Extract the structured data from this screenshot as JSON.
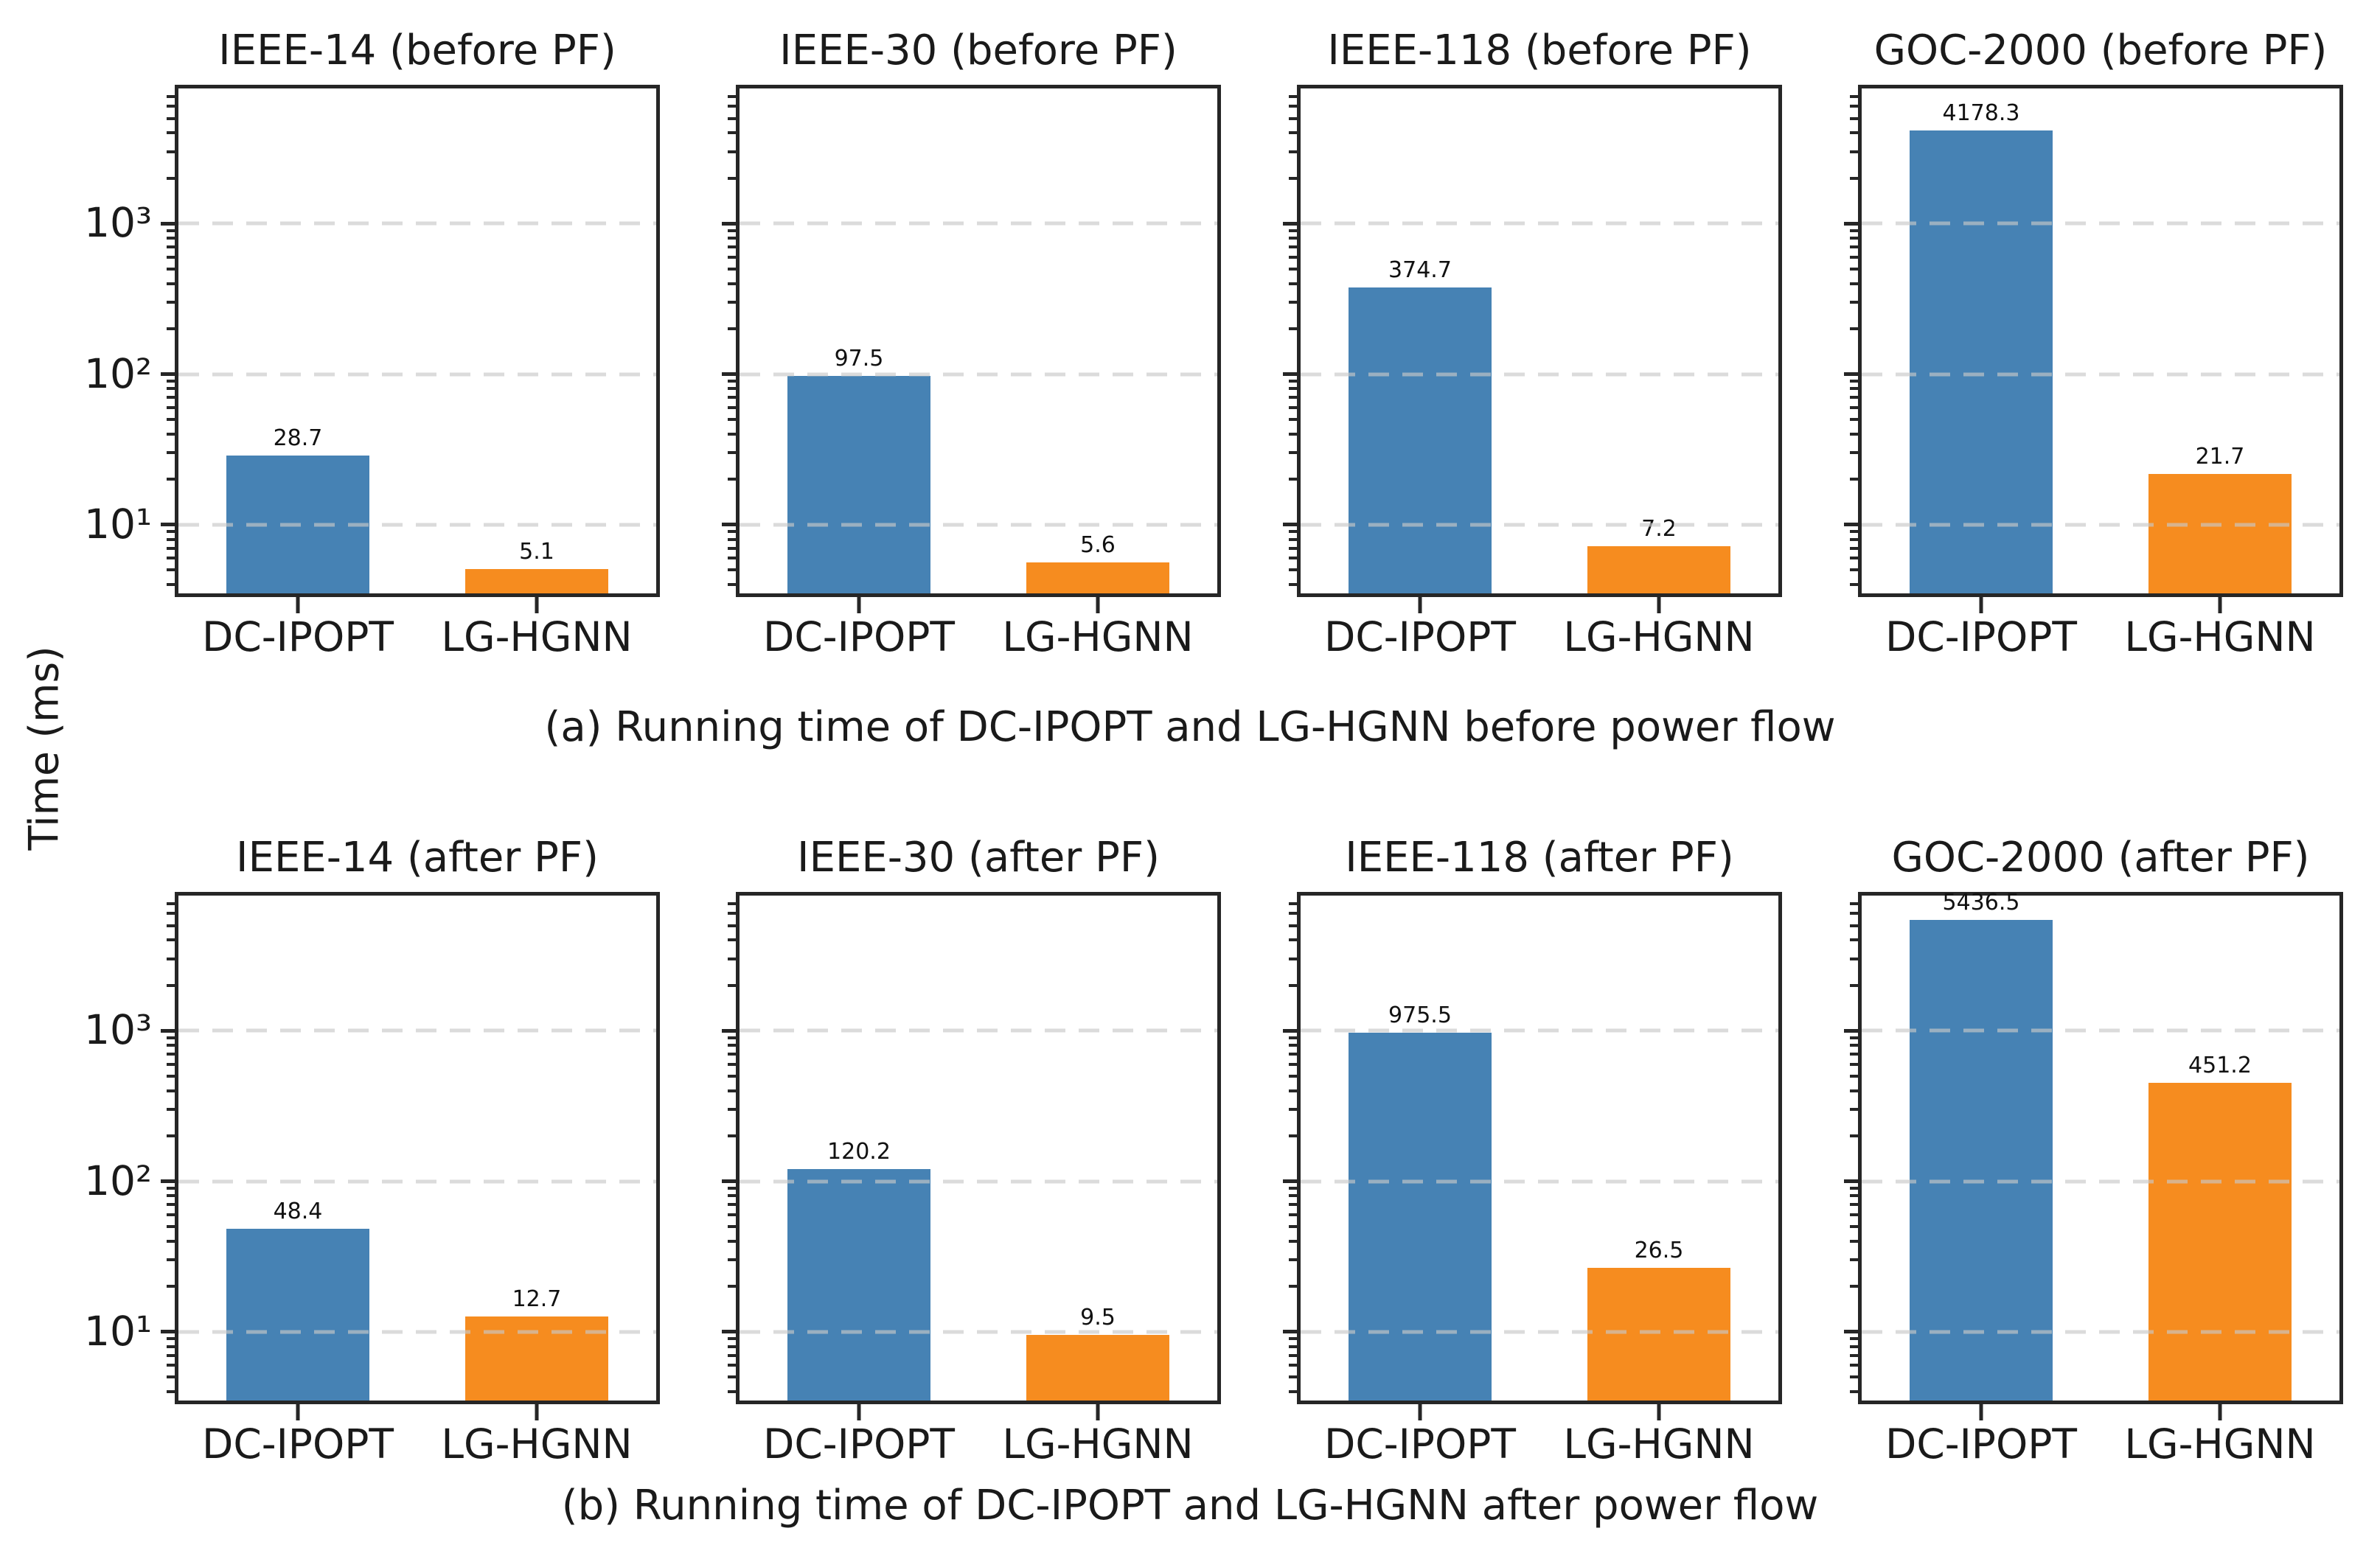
{
  "chart_data": {
    "type": "bar",
    "yscale": "log",
    "ylabel": "Time (ms)",
    "ylim": [
      3.5,
      7900
    ],
    "ytick_values": [
      10,
      100,
      1000
    ],
    "ytick_labels": [
      "10¹",
      "10²",
      "10³"
    ],
    "grid": {
      "axis": "y",
      "style": "dashed",
      "color": "#d3d3d3",
      "values": [
        10,
        100,
        1000
      ],
      "drawn_over_bars": true
    },
    "categories": [
      "DC-IPOPT",
      "LG-HGNN"
    ],
    "bar_colors": [
      "#4682B4",
      "#F68C1F"
    ],
    "spine_color": "#262626",
    "rows": [
      {
        "caption": "(a) Running time of DC-IPOPT and LG-HGNN before power flow",
        "subplots": [
          {
            "title": "IEEE-14 (before PF)",
            "values": [
              28.7,
              5.1
            ]
          },
          {
            "title": "IEEE-30 (before PF)",
            "values": [
              97.5,
              5.6
            ]
          },
          {
            "title": "IEEE-118 (before PF)",
            "values": [
              374.7,
              7.2
            ]
          },
          {
            "title": "GOC-2000 (before PF)",
            "values": [
              4178.3,
              21.7
            ]
          }
        ]
      },
      {
        "caption": "(b) Running time of DC-IPOPT and LG-HGNN after power flow",
        "subplots": [
          {
            "title": "IEEE-14 (after PF)",
            "values": [
              48.4,
              12.7
            ]
          },
          {
            "title": "IEEE-30 (after PF)",
            "values": [
              120.2,
              9.5
            ]
          },
          {
            "title": "IEEE-118 (after PF)",
            "values": [
              975.5,
              26.5
            ]
          },
          {
            "title": "GOC-2000 (after PF)",
            "values": [
              5436.5,
              451.2
            ]
          }
        ]
      }
    ]
  }
}
